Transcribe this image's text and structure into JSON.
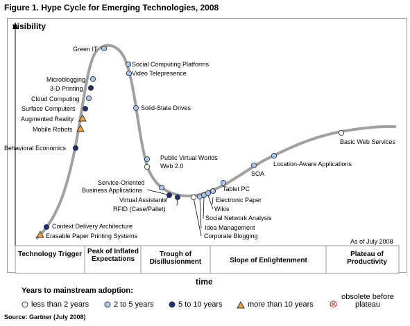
{
  "title": "Figure 1. Hype Cycle for Emerging Technologies, 2008",
  "y_axis": "visibility",
  "x_axis": "time",
  "as_of": "As of July 2008",
  "phases": [
    "Technology Trigger",
    "Peak of Inflated Expectations",
    "Trough of Disillusionment",
    "Slope of Enlightenment",
    "Plateau of Productivity"
  ],
  "legend_title": "Years to mainstream adoption:",
  "legend": {
    "lt2": "less than 2 years",
    "y2to5": "2 to 5 years",
    "y5to10": "5 to 10 years",
    "gt10": "more than 10 years",
    "obsolete": "obsolete before plateau"
  },
  "source": "Source: Gartner (July 2008)",
  "colors": {
    "curve": "#a0a0a0",
    "lt2": "#ffffff",
    "y2to5": "#a6c8f0",
    "y5to10": "#1d2f7a",
    "gt10": "#f2a23a",
    "obsolete": "#d81e1e"
  },
  "technologies": [
    {
      "name": "Green IT",
      "category": "y2to5"
    },
    {
      "name": "Microblogging",
      "category": "y2to5"
    },
    {
      "name": "3-D Printing",
      "category": "y5to10"
    },
    {
      "name": "Cloud Computing",
      "category": "y2to5"
    },
    {
      "name": "Surface Computers",
      "category": "y5to10"
    },
    {
      "name": "Augmented Reality",
      "category": "gt10"
    },
    {
      "name": "Mobile Robots",
      "category": "gt10"
    },
    {
      "name": "Behavioral Economics",
      "category": "y5to10"
    },
    {
      "name": "Context Delivery Architecture",
      "category": "y5to10"
    },
    {
      "name": "Erasable Paper Printing Systems",
      "category": "gt10"
    },
    {
      "name": "Social Computing Platforms",
      "category": "y2to5"
    },
    {
      "name": "Video Telepresence",
      "category": "y2to5"
    },
    {
      "name": "Solid-State Drives",
      "category": "y2to5"
    },
    {
      "name": "Public Virtual Worlds",
      "category": "y2to5"
    },
    {
      "name": "Web 2.0",
      "category": "lt2"
    },
    {
      "name": "Service-Oriented Business Applications",
      "category": "y2to5"
    },
    {
      "name": "Virtual Assistants",
      "category": "y5to10"
    },
    {
      "name": "RFID (Case/Pallet)",
      "category": "y5to10"
    },
    {
      "name": "Corporate Blogging",
      "category": "lt2"
    },
    {
      "name": "Idea Management",
      "category": "y2to5"
    },
    {
      "name": "Wikis",
      "category": "y2to5"
    },
    {
      "name": "Social Network Analysis",
      "category": "y2to5"
    },
    {
      "name": "Electronic Paper",
      "category": "y2to5"
    },
    {
      "name": "Tablet PC",
      "category": "y2to5"
    },
    {
      "name": "SOA",
      "category": "y2to5"
    },
    {
      "name": "Location-Aware Applications",
      "category": "y2to5"
    },
    {
      "name": "Basic Web Services",
      "category": "lt2"
    }
  ]
}
